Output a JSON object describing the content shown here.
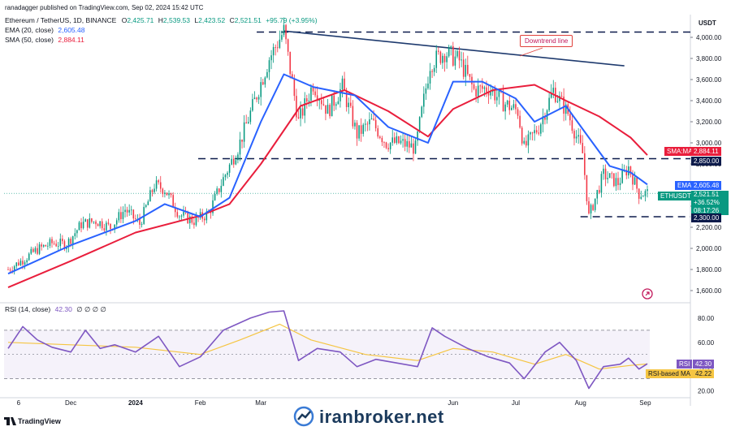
{
  "header": {
    "publisher": "ranadagger published on TradingView.com, Sep 02, 2024 15:42 UTC",
    "symbol_line": "Ethereum / TetherUS, 1D, BINANCE",
    "ohlc": {
      "O": "2,425.71",
      "H": "2,539.53",
      "L": "2,423.52",
      "C": "2,521.51",
      "change": "+95.79 (+3.95%)"
    }
  },
  "legend": {
    "ema_label": "EMA (20, close)",
    "ema_value": "2,605.48",
    "sma_label": "SMA (50, close)",
    "sma_value": "2,884.11",
    "rsi_label": "RSI (14, close)",
    "rsi_value": "42.30",
    "rsi_extra": "∅ ∅ ∅ ∅"
  },
  "currency": "USDT",
  "price_tags": {
    "sma_ma": "SMA:MA",
    "sma_val": "2,884.11",
    "level_high": "2,850.00",
    "ema": "EMA",
    "ema_val": "2,605.48",
    "ethusdt": "ETHUSDT",
    "last": "2,521.51",
    "chg": "+36.52%",
    "countdown": "08:17:26",
    "level_low": "2,300.00"
  },
  "rsi_tags": {
    "rsi": "RSI",
    "rsi_val": "42.30",
    "ma": "RSI-based MA",
    "ma_val": "42.22"
  },
  "annotation": "Downtrend line",
  "watermark": "iranbroker.net",
  "footer_logo": "TradingView",
  "colors": {
    "up": "#089981",
    "down": "#f23645",
    "ema": "#2962ff",
    "sma": "#e91e3c",
    "rsi": "#7e57c2",
    "rsi_ma": "#f5c542",
    "level": "#0d1b4b",
    "trend": "#1e3a6e"
  },
  "chart_data": {
    "type": "line",
    "title": "Ethereum / TetherUS, 1D, BINANCE",
    "price_axis": {
      "ticks": [
        1600,
        1800,
        2000,
        2200,
        2400,
        2600,
        2800,
        3000,
        3200,
        3400,
        3600,
        3800,
        4000
      ],
      "range": [
        1500,
        4100
      ]
    },
    "rsi_axis": {
      "ticks": [
        20,
        40,
        60,
        80
      ],
      "range": [
        15,
        90
      ],
      "bands": [
        30,
        70
      ]
    },
    "x_ticks": [
      "6",
      "Dec",
      "2024",
      "Feb",
      "Mar",
      "Jun",
      "Jul",
      "Aug",
      "Sep"
    ],
    "horizontal_levels": [
      4050,
      2850,
      2300
    ],
    "trendline": {
      "from": {
        "date": "2024-03-12",
        "price": 4060
      },
      "to": {
        "date": "2024-08-22",
        "price": 3730
      }
    },
    "close_series": [
      [
        "2023-11-01",
        1800
      ],
      [
        "2023-11-08",
        1890
      ],
      [
        "2023-11-15",
        1990
      ],
      [
        "2023-11-22",
        2050
      ],
      [
        "2023-11-29",
        2040
      ],
      [
        "2023-12-06",
        2230
      ],
      [
        "2023-12-13",
        2260
      ],
      [
        "2023-12-20",
        2200
      ],
      [
        "2023-12-27",
        2370
      ],
      [
        "2024-01-03",
        2230
      ],
      [
        "2024-01-10",
        2600
      ],
      [
        "2024-01-15",
        2560
      ],
      [
        "2024-01-22",
        2320
      ],
      [
        "2024-01-29",
        2260
      ],
      [
        "2024-02-05",
        2330
      ],
      [
        "2024-02-12",
        2660
      ],
      [
        "2024-02-19",
        2950
      ],
      [
        "2024-02-26",
        3340
      ],
      [
        "2024-03-05",
        3800
      ],
      [
        "2024-03-12",
        4060
      ],
      [
        "2024-03-19",
        3200
      ],
      [
        "2024-03-26",
        3560
      ],
      [
        "2024-04-02",
        3300
      ],
      [
        "2024-04-09",
        3530
      ],
      [
        "2024-04-16",
        3080
      ],
      [
        "2024-04-23",
        3200
      ],
      [
        "2024-04-30",
        3000
      ],
      [
        "2024-05-07",
        3000
      ],
      [
        "2024-05-14",
        2950
      ],
      [
        "2024-05-21",
        3750
      ],
      [
        "2024-05-28",
        3860
      ],
      [
        "2024-06-04",
        3780
      ],
      [
        "2024-06-11",
        3500
      ],
      [
        "2024-06-18",
        3520
      ],
      [
        "2024-06-25",
        3380
      ],
      [
        "2024-07-02",
        3300
      ],
      [
        "2024-07-05",
        2950
      ],
      [
        "2024-07-12",
        3150
      ],
      [
        "2024-07-19",
        3500
      ],
      [
        "2024-07-26",
        3280
      ],
      [
        "2024-08-02",
        2900
      ],
      [
        "2024-08-05",
        2300
      ],
      [
        "2024-08-12",
        2700
      ],
      [
        "2024-08-19",
        2620
      ],
      [
        "2024-08-24",
        2770
      ],
      [
        "2024-08-29",
        2520
      ],
      [
        "2024-09-02",
        2521.51
      ]
    ],
    "ema20": [
      [
        "2023-11-01",
        1760
      ],
      [
        "2023-12-01",
        2030
      ],
      [
        "2024-01-01",
        2260
      ],
      [
        "2024-01-15",
        2420
      ],
      [
        "2024-02-01",
        2300
      ],
      [
        "2024-02-15",
        2480
      ],
      [
        "2024-03-01",
        3200
      ],
      [
        "2024-03-12",
        3650
      ],
      [
        "2024-03-26",
        3530
      ],
      [
        "2024-04-15",
        3450
      ],
      [
        "2024-05-01",
        3150
      ],
      [
        "2024-05-20",
        3000
      ],
      [
        "2024-06-01",
        3580
      ],
      [
        "2024-06-15",
        3580
      ],
      [
        "2024-07-01",
        3420
      ],
      [
        "2024-07-10",
        3200
      ],
      [
        "2024-07-25",
        3350
      ],
      [
        "2024-08-05",
        3050
      ],
      [
        "2024-08-15",
        2780
      ],
      [
        "2024-08-25",
        2720
      ],
      [
        "2024-09-02",
        2605.48
      ]
    ],
    "sma50": [
      [
        "2023-11-01",
        1630
      ],
      [
        "2023-12-01",
        1880
      ],
      [
        "2024-01-01",
        2150
      ],
      [
        "2024-02-01",
        2310
      ],
      [
        "2024-02-15",
        2420
      ],
      [
        "2024-03-01",
        2800
      ],
      [
        "2024-03-20",
        3350
      ],
      [
        "2024-04-10",
        3500
      ],
      [
        "2024-05-01",
        3300
      ],
      [
        "2024-05-20",
        3060
      ],
      [
        "2024-06-01",
        3320
      ],
      [
        "2024-06-20",
        3500
      ],
      [
        "2024-07-10",
        3550
      ],
      [
        "2024-07-25",
        3400
      ],
      [
        "2024-08-10",
        3250
      ],
      [
        "2024-08-25",
        3050
      ],
      [
        "2024-09-02",
        2884.11
      ]
    ],
    "rsi": [
      [
        "2023-11-01",
        55
      ],
      [
        "2023-11-08",
        73
      ],
      [
        "2023-11-15",
        62
      ],
      [
        "2023-11-22",
        56
      ],
      [
        "2023-12-01",
        52
      ],
      [
        "2023-12-08",
        70
      ],
      [
        "2023-12-15",
        55
      ],
      [
        "2023-12-22",
        58
      ],
      [
        "2024-01-01",
        52
      ],
      [
        "2024-01-12",
        65
      ],
      [
        "2024-01-22",
        40
      ],
      [
        "2024-02-01",
        48
      ],
      [
        "2024-02-12",
        70
      ],
      [
        "2024-02-25",
        80
      ],
      [
        "2024-03-05",
        85
      ],
      [
        "2024-03-12",
        86
      ],
      [
        "2024-03-19",
        45
      ],
      [
        "2024-03-28",
        55
      ],
      [
        "2024-04-08",
        52
      ],
      [
        "2024-04-16",
        40
      ],
      [
        "2024-04-25",
        46
      ],
      [
        "2024-05-05",
        43
      ],
      [
        "2024-05-15",
        40
      ],
      [
        "2024-05-22",
        72
      ],
      [
        "2024-05-28",
        65
      ],
      [
        "2024-06-08",
        55
      ],
      [
        "2024-06-18",
        48
      ],
      [
        "2024-06-28",
        43
      ],
      [
        "2024-07-05",
        30
      ],
      [
        "2024-07-15",
        52
      ],
      [
        "2024-07-22",
        60
      ],
      [
        "2024-07-30",
        45
      ],
      [
        "2024-08-05",
        22
      ],
      [
        "2024-08-12",
        40
      ],
      [
        "2024-08-20",
        42
      ],
      [
        "2024-08-24",
        47
      ],
      [
        "2024-08-29",
        38
      ],
      [
        "2024-09-02",
        42.3
      ]
    ],
    "rsi_ma": [
      [
        "2023-11-01",
        60
      ],
      [
        "2023-12-01",
        58
      ],
      [
        "2024-01-01",
        56
      ],
      [
        "2024-02-01",
        50
      ],
      [
        "2024-02-20",
        62
      ],
      [
        "2024-03-10",
        75
      ],
      [
        "2024-03-25",
        62
      ],
      [
        "2024-04-20",
        50
      ],
      [
        "2024-05-15",
        45
      ],
      [
        "2024-06-01",
        55
      ],
      [
        "2024-06-20",
        52
      ],
      [
        "2024-07-10",
        42
      ],
      [
        "2024-07-25",
        50
      ],
      [
        "2024-08-10",
        38
      ],
      [
        "2024-08-25",
        41
      ],
      [
        "2024-09-02",
        42.22
      ]
    ]
  }
}
